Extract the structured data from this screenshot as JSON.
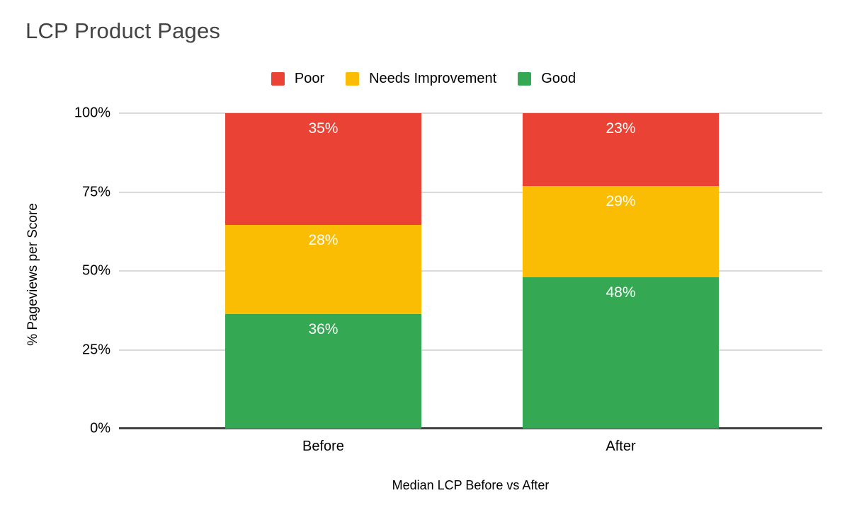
{
  "chart_data": {
    "type": "bar",
    "variant": "stacked-column",
    "title": "LCP Product Pages",
    "categories": [
      "Before",
      "After"
    ],
    "series": [
      {
        "name": "Poor",
        "color": "#EA4335",
        "values": [
          35,
          23
        ],
        "labels": [
          "35%",
          "23%"
        ]
      },
      {
        "name": "Needs Improvement",
        "color": "#FBBC04",
        "values": [
          28,
          29
        ],
        "labels": [
          "28%",
          "29%"
        ]
      },
      {
        "name": "Good",
        "color": "#34A853",
        "values": [
          36,
          48
        ],
        "labels": [
          "36%",
          "48%"
        ]
      }
    ],
    "stack_order_top_to_bottom": [
      "Poor",
      "Needs Improvement",
      "Good"
    ],
    "xlabel": "Median LCP Before vs After",
    "ylabel": "% Pageviews per Score",
    "ylim": [
      0,
      100
    ],
    "yticks": [
      {
        "label": "0%",
        "value": 0
      },
      {
        "label": "25%",
        "value": 25
      },
      {
        "label": "50%",
        "value": 50
      },
      {
        "label": "75%",
        "value": 75
      },
      {
        "label": "100%",
        "value": 100
      }
    ],
    "legend_position": "top",
    "legend_entries": [
      "Poor",
      "Needs Improvement",
      "Good"
    ],
    "grid": true
  },
  "colors": {
    "title_text": "#434343",
    "axis_text": "#000000",
    "bar_label_text": "#ffffff",
    "gridline": "#d9d9d9",
    "axis_line": "#424242",
    "background": "#ffffff"
  }
}
